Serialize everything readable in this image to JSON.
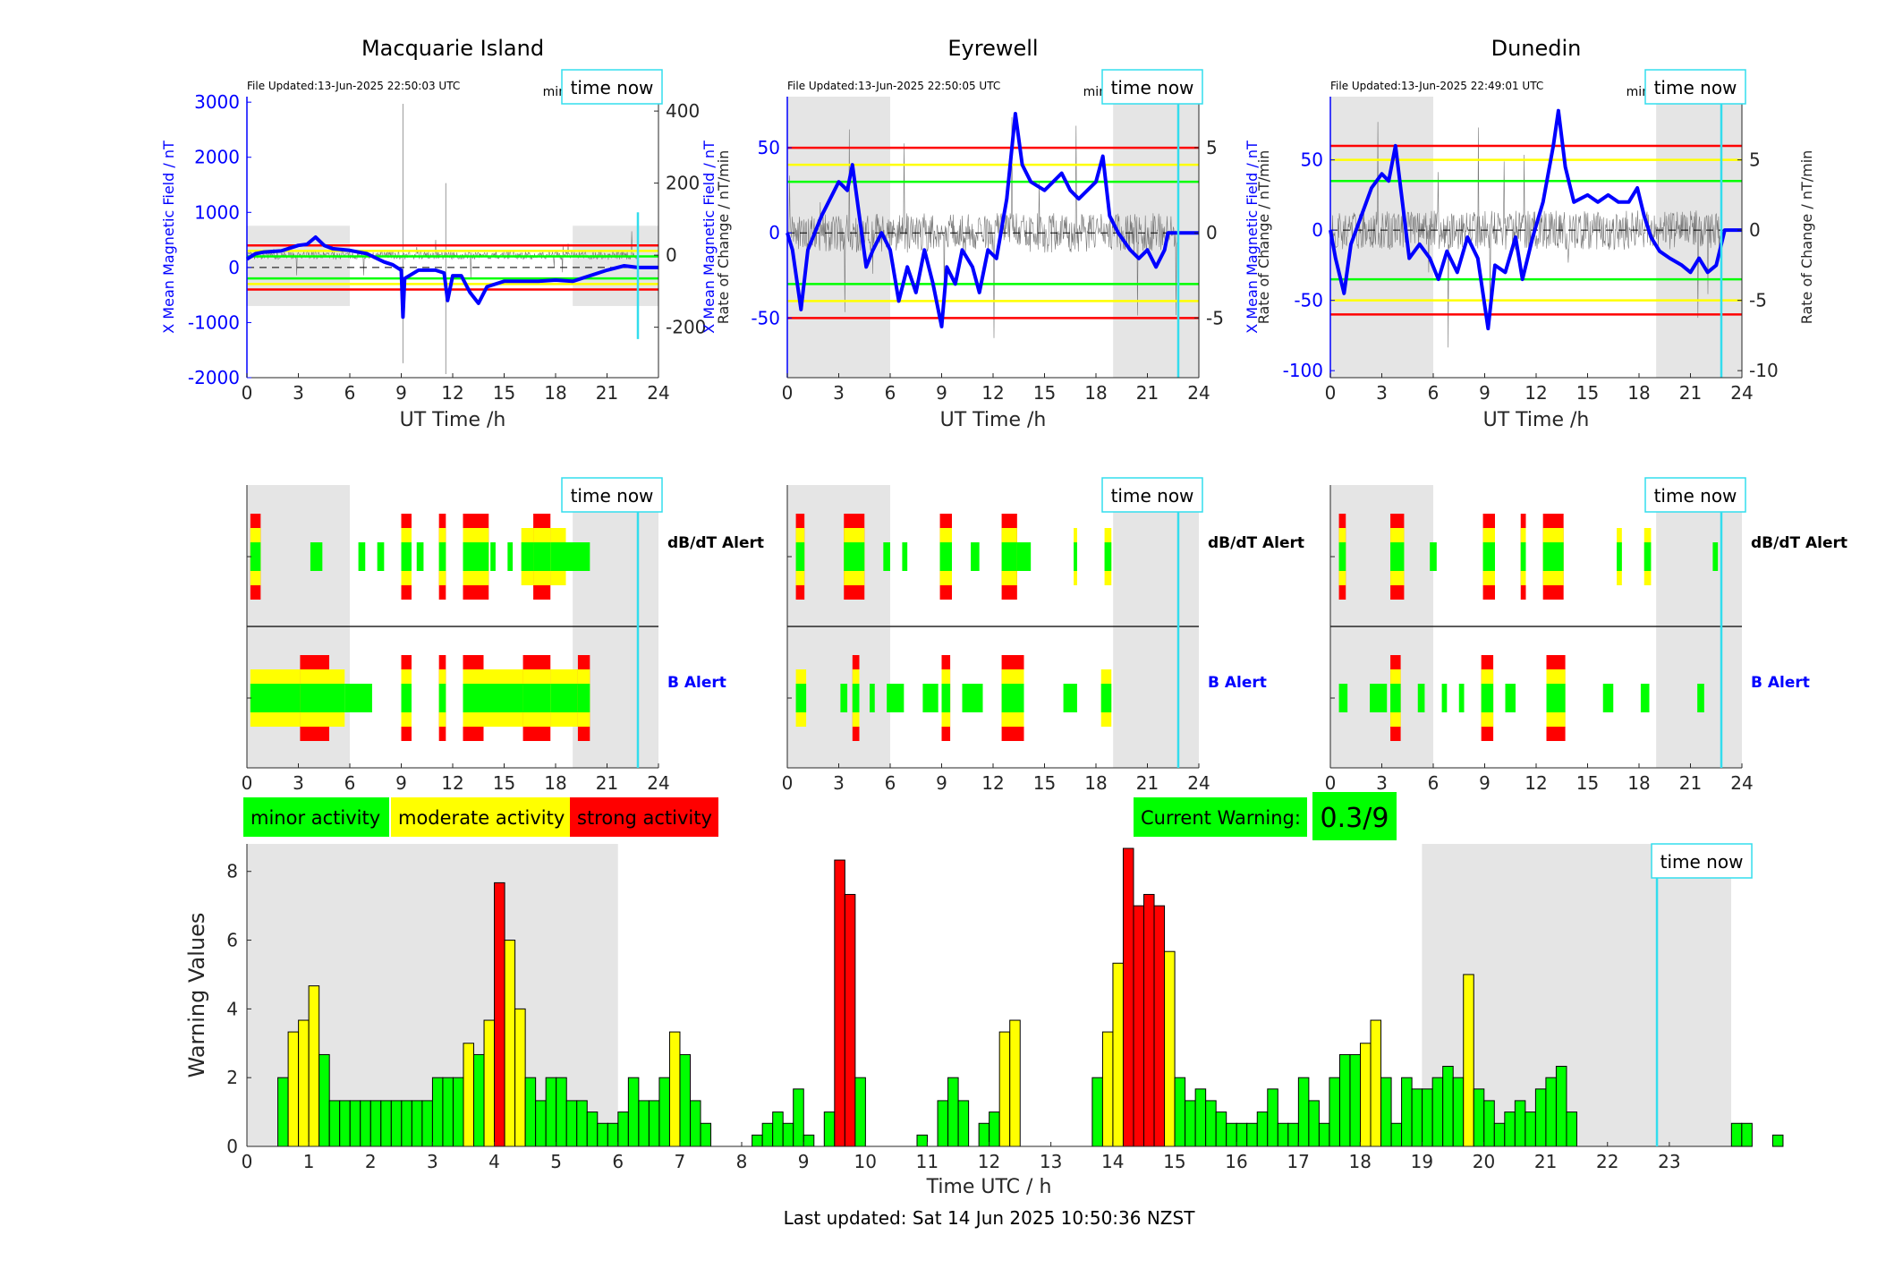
{
  "stations": [
    {
      "name": "Macquarie Island",
      "file_updated": "File Updated:13-Jun-2025 22:50:03 UTC",
      "resolution": "minute resolution",
      "time_now": "time now",
      "ylabel_left": "X Mean Magnetic Field / nT",
      "ylabel_right": "Rate of Change / nT/min",
      "xlabel": "UT Time /h",
      "left_ticks": [
        -2000,
        -1000,
        0,
        1000,
        2000,
        3000
      ],
      "left_ylim": [
        -2000,
        3100
      ],
      "right_ticks": [
        -200,
        0,
        200,
        400
      ],
      "right_ylim": [
        -340,
        440
      ],
      "x_ticks": [
        0,
        3,
        6,
        9,
        12,
        15,
        18,
        21,
        24
      ],
      "thresholds": {
        "red": [
          400,
          -400
        ],
        "yellow": [
          300,
          -300
        ],
        "green": [
          200,
          -200
        ]
      },
      "field_trace": [
        [
          0,
          150
        ],
        [
          0.5,
          250
        ],
        [
          1,
          280
        ],
        [
          2,
          300
        ],
        [
          3,
          400
        ],
        [
          3.5,
          420
        ],
        [
          4,
          550
        ],
        [
          4.5,
          400
        ],
        [
          5,
          340
        ],
        [
          6,
          310
        ],
        [
          7,
          250
        ],
        [
          8,
          100
        ],
        [
          8.5,
          50
        ],
        [
          9,
          -50
        ],
        [
          9.1,
          -900
        ],
        [
          9.2,
          -200
        ],
        [
          10,
          -50
        ],
        [
          11,
          -50
        ],
        [
          11.5,
          -100
        ],
        [
          11.7,
          -600
        ],
        [
          12,
          -150
        ],
        [
          12.5,
          -150
        ],
        [
          13,
          -450
        ],
        [
          13.5,
          -650
        ],
        [
          14,
          -350
        ],
        [
          15,
          -250
        ],
        [
          16,
          -250
        ],
        [
          17,
          -250
        ],
        [
          18,
          -230
        ],
        [
          19,
          -250
        ],
        [
          20,
          -150
        ],
        [
          21,
          -50
        ],
        [
          22,
          30
        ],
        [
          22.8,
          0
        ],
        [
          24,
          0
        ]
      ],
      "dbdt_blocks": [
        [
          0.2,
          0.8,
          "r"
        ],
        [
          3.7,
          4.4,
          "g"
        ],
        [
          6.5,
          6.9,
          "g"
        ],
        [
          7.6,
          8.0,
          "g"
        ],
        [
          9.0,
          9.6,
          "r"
        ],
        [
          9.9,
          10.3,
          "g"
        ],
        [
          11.2,
          11.6,
          "r"
        ],
        [
          12.6,
          14.1,
          "r"
        ],
        [
          14.2,
          14.5,
          "g"
        ],
        [
          15.2,
          15.5,
          "g"
        ],
        [
          16.0,
          16.7,
          "y"
        ],
        [
          16.7,
          17.7,
          "r"
        ],
        [
          17.7,
          18.6,
          "y"
        ],
        [
          18.6,
          20.0,
          "g"
        ]
      ],
      "b_blocks": [
        [
          0.2,
          3.1,
          "y"
        ],
        [
          3.1,
          4.8,
          "r"
        ],
        [
          4.8,
          5.7,
          "y"
        ],
        [
          5.7,
          7.3,
          "g"
        ],
        [
          9.0,
          9.6,
          "r"
        ],
        [
          11.2,
          11.6,
          "r"
        ],
        [
          12.6,
          13.8,
          "r"
        ],
        [
          13.8,
          16.1,
          "y"
        ],
        [
          16.1,
          17.7,
          "r"
        ],
        [
          17.7,
          19.3,
          "y"
        ],
        [
          19.3,
          20.0,
          "r"
        ]
      ]
    },
    {
      "name": "Eyrewell",
      "file_updated": "File Updated:13-Jun-2025 22:50:05 UTC",
      "resolution": "minute resolution",
      "time_now": "time now",
      "ylabel_left": "X Mean Magnetic Field / nT",
      "ylabel_right": "Rate of Change / nT/min",
      "xlabel": "UT Time /h",
      "left_ticks": [
        -50,
        0,
        50
      ],
      "left_ylim": [
        -85,
        80
      ],
      "right_ticks": [
        -5,
        0,
        5
      ],
      "right_ylim": [
        -8.5,
        8
      ],
      "x_ticks": [
        0,
        3,
        6,
        9,
        12,
        15,
        18,
        21,
        24
      ],
      "thresholds": {
        "red": [
          50,
          -50
        ],
        "yellow": [
          40,
          -40
        ],
        "green": [
          30,
          -30
        ]
      },
      "field_trace": [
        [
          0,
          0
        ],
        [
          0.3,
          -10
        ],
        [
          0.8,
          -45
        ],
        [
          1.2,
          -10
        ],
        [
          1.6,
          0
        ],
        [
          2,
          10
        ],
        [
          2.5,
          20
        ],
        [
          3,
          30
        ],
        [
          3.5,
          25
        ],
        [
          3.8,
          40
        ],
        [
          4.2,
          10
        ],
        [
          4.6,
          -20
        ],
        [
          5,
          -10
        ],
        [
          5.5,
          0
        ],
        [
          6,
          -10
        ],
        [
          6.5,
          -40
        ],
        [
          7,
          -20
        ],
        [
          7.5,
          -35
        ],
        [
          8,
          -10
        ],
        [
          8.5,
          -30
        ],
        [
          9,
          -55
        ],
        [
          9.3,
          -20
        ],
        [
          9.8,
          -30
        ],
        [
          10.2,
          -10
        ],
        [
          10.8,
          -20
        ],
        [
          11.2,
          -35
        ],
        [
          11.7,
          -10
        ],
        [
          12.2,
          -15
        ],
        [
          12.8,
          20
        ],
        [
          13.3,
          70
        ],
        [
          13.7,
          40
        ],
        [
          14.2,
          30
        ],
        [
          15,
          25
        ],
        [
          15.5,
          30
        ],
        [
          16,
          35
        ],
        [
          16.5,
          25
        ],
        [
          17,
          20
        ],
        [
          17.5,
          25
        ],
        [
          18,
          30
        ],
        [
          18.4,
          45
        ],
        [
          18.8,
          10
        ],
        [
          19.3,
          0
        ],
        [
          20,
          -10
        ],
        [
          20.5,
          -15
        ],
        [
          21,
          -10
        ],
        [
          21.5,
          -20
        ],
        [
          22,
          -10
        ],
        [
          22.2,
          0
        ],
        [
          24,
          0
        ]
      ],
      "dbdt_blocks": [
        [
          0.5,
          1.0,
          "r"
        ],
        [
          3.3,
          4.5,
          "r"
        ],
        [
          5.6,
          6.0,
          "g"
        ],
        [
          6.7,
          7.0,
          "g"
        ],
        [
          8.9,
          9.6,
          "r"
        ],
        [
          10.7,
          11.2,
          "g"
        ],
        [
          12.5,
          13.4,
          "r"
        ],
        [
          13.4,
          14.2,
          "g"
        ],
        [
          16.7,
          16.9,
          "y"
        ],
        [
          18.5,
          18.9,
          "y"
        ]
      ],
      "b_blocks": [
        [
          0.5,
          1.1,
          "y"
        ],
        [
          3.1,
          3.5,
          "g"
        ],
        [
          3.8,
          4.2,
          "r"
        ],
        [
          4.8,
          5.1,
          "g"
        ],
        [
          5.8,
          6.8,
          "g"
        ],
        [
          7.9,
          8.8,
          "g"
        ],
        [
          9.0,
          9.5,
          "r"
        ],
        [
          10.2,
          11.4,
          "g"
        ],
        [
          12.5,
          13.8,
          "r"
        ],
        [
          16.1,
          16.9,
          "g"
        ],
        [
          18.3,
          18.9,
          "y"
        ]
      ]
    },
    {
      "name": "Dunedin",
      "file_updated": "File Updated:13-Jun-2025 22:49:01 UTC",
      "resolution": "minute resolution",
      "time_now": "time now",
      "ylabel_left": "X Mean Magnetic Field / nT",
      "ylabel_right": "Rate of Change / nT/min",
      "xlabel": "UT Time /h",
      "left_ticks": [
        -100,
        -50,
        0,
        50
      ],
      "left_ylim": [
        -105,
        95
      ],
      "right_ticks": [
        -10,
        -5,
        0,
        5
      ],
      "right_ylim": [
        -10.5,
        9.5
      ],
      "x_ticks": [
        0,
        3,
        6,
        9,
        12,
        15,
        18,
        21,
        24
      ],
      "thresholds": {
        "red": [
          60,
          -60
        ],
        "yellow": [
          50,
          -50
        ],
        "green": [
          35,
          -35
        ]
      },
      "field_trace": [
        [
          0,
          0
        ],
        [
          0.3,
          -20
        ],
        [
          0.8,
          -45
        ],
        [
          1.2,
          -10
        ],
        [
          1.8,
          10
        ],
        [
          2.4,
          30
        ],
        [
          3,
          40
        ],
        [
          3.4,
          35
        ],
        [
          3.8,
          60
        ],
        [
          4.2,
          20
        ],
        [
          4.6,
          -20
        ],
        [
          5.2,
          -10
        ],
        [
          5.8,
          -20
        ],
        [
          6.3,
          -35
        ],
        [
          6.8,
          -15
        ],
        [
          7.4,
          -30
        ],
        [
          8,
          -5
        ],
        [
          8.6,
          -20
        ],
        [
          9.2,
          -70
        ],
        [
          9.6,
          -25
        ],
        [
          10.2,
          -30
        ],
        [
          10.8,
          -5
        ],
        [
          11.2,
          -35
        ],
        [
          11.8,
          -5
        ],
        [
          12.4,
          20
        ],
        [
          13,
          60
        ],
        [
          13.3,
          85
        ],
        [
          13.7,
          45
        ],
        [
          14.2,
          20
        ],
        [
          15,
          25
        ],
        [
          15.6,
          20
        ],
        [
          16.2,
          25
        ],
        [
          16.8,
          20
        ],
        [
          17.4,
          20
        ],
        [
          17.9,
          30
        ],
        [
          18.3,
          10
        ],
        [
          18.7,
          -5
        ],
        [
          19.2,
          -15
        ],
        [
          19.8,
          -20
        ],
        [
          20.5,
          -25
        ],
        [
          21,
          -30
        ],
        [
          21.5,
          -20
        ],
        [
          22,
          -30
        ],
        [
          22.5,
          -25
        ],
        [
          23,
          0
        ],
        [
          24,
          0
        ]
      ],
      "dbdt_blocks": [
        [
          0.5,
          0.9,
          "r"
        ],
        [
          3.5,
          4.3,
          "r"
        ],
        [
          5.8,
          6.2,
          "g"
        ],
        [
          8.9,
          9.6,
          "r"
        ],
        [
          11.1,
          11.4,
          "r"
        ],
        [
          12.4,
          13.6,
          "r"
        ],
        [
          16.7,
          17.0,
          "y"
        ],
        [
          18.3,
          18.7,
          "y"
        ],
        [
          22.3,
          22.6,
          "g"
        ]
      ],
      "b_blocks": [
        [
          0.5,
          1.0,
          "g"
        ],
        [
          2.3,
          3.3,
          "g"
        ],
        [
          3.5,
          4.1,
          "r"
        ],
        [
          5.1,
          5.5,
          "g"
        ],
        [
          6.5,
          6.8,
          "g"
        ],
        [
          7.5,
          7.8,
          "g"
        ],
        [
          8.8,
          9.5,
          "r"
        ],
        [
          10.2,
          10.8,
          "g"
        ],
        [
          12.6,
          13.7,
          "r"
        ],
        [
          15.9,
          16.5,
          "g"
        ],
        [
          18.1,
          18.6,
          "g"
        ],
        [
          21.4,
          21.8,
          "g"
        ]
      ]
    }
  ],
  "alerts": {
    "dbdt_label": "dB/dT Alert",
    "b_label": "B Alert",
    "time_now": "time now",
    "x_ticks": [
      0,
      3,
      6,
      9,
      12,
      15,
      18,
      21,
      24
    ]
  },
  "legend": {
    "minor": "minor activity",
    "moderate": "moderate activity",
    "strong": "strong activity"
  },
  "current_warning": {
    "label": "Current Warning:",
    "value": "0.3/9"
  },
  "time_now_hour": 22.8,
  "shading": {
    "left_end": 6.0,
    "right_start": 19.0
  },
  "colors": {
    "minor": "#00ff00",
    "moderate": "#ffff00",
    "strong": "#ff0000",
    "time_now": "#33dded",
    "field": "#0000ff",
    "shade": "#e5e5e5"
  },
  "chart_data": {
    "type": "bar",
    "xlabel": "Time UTC / h",
    "ylabel": "Warning Values",
    "xlim": [
      0,
      24
    ],
    "ylim": [
      0,
      8.8
    ],
    "x_ticks": [
      0,
      1,
      2,
      3,
      4,
      5,
      6,
      7,
      8,
      9,
      10,
      11,
      12,
      13,
      14,
      15,
      16,
      17,
      18,
      19,
      20,
      21,
      22,
      23
    ],
    "y_ticks": [
      0,
      2,
      4,
      6,
      8
    ],
    "values": [
      0,
      0,
      0,
      2,
      3.33,
      3.67,
      4.67,
      2.67,
      1.33,
      1.33,
      1.33,
      1.33,
      1.33,
      1.33,
      1.33,
      1.33,
      1.33,
      1.33,
      2,
      2,
      2,
      3,
      2.67,
      3.67,
      7.67,
      6,
      4,
      2,
      1.33,
      2,
      2,
      1.33,
      1.33,
      1,
      0.67,
      0.67,
      1,
      2,
      1.33,
      1.33,
      2,
      3.33,
      2.67,
      1.33,
      0.67,
      0,
      0,
      0,
      0,
      0.33,
      0.67,
      1,
      0.67,
      1.67,
      0.33,
      0,
      1,
      8.33,
      7.33,
      2,
      0,
      0,
      0,
      0,
      0,
      0.33,
      0,
      1.33,
      2,
      1.33,
      0,
      0.67,
      1,
      3.33,
      3.67,
      0,
      0,
      0,
      0,
      0,
      0,
      0,
      2,
      3.33,
      5.33,
      8.67,
      7,
      7.33,
      7,
      5.67,
      2,
      1.33,
      1.67,
      1.33,
      1,
      0.67,
      0.67,
      0.67,
      1,
      1.67,
      0.67,
      0.67,
      2,
      1.33,
      0.67,
      2,
      2.67,
      2.67,
      3,
      3.67,
      2,
      0.67,
      2,
      1.67,
      1.67,
      2,
      2.33,
      2,
      5,
      1.67,
      1.33,
      0.67,
      1,
      1.33,
      1,
      1.67,
      2,
      2.33,
      1,
      0,
      0,
      0,
      0,
      0,
      0,
      0,
      0,
      0,
      0,
      0,
      0,
      0,
      0,
      0,
      0.67,
      0.67,
      0,
      0,
      0.33,
      0,
      0,
      0,
      0,
      0,
      0,
      0,
      0,
      0,
      0,
      0,
      0,
      0,
      0,
      0,
      0,
      0,
      0,
      0,
      0
    ],
    "bin_width_h": 0.1667,
    "footer": "Last updated: Sat 14 Jun 2025 10:50:36 NZST",
    "time_now": "time now"
  }
}
